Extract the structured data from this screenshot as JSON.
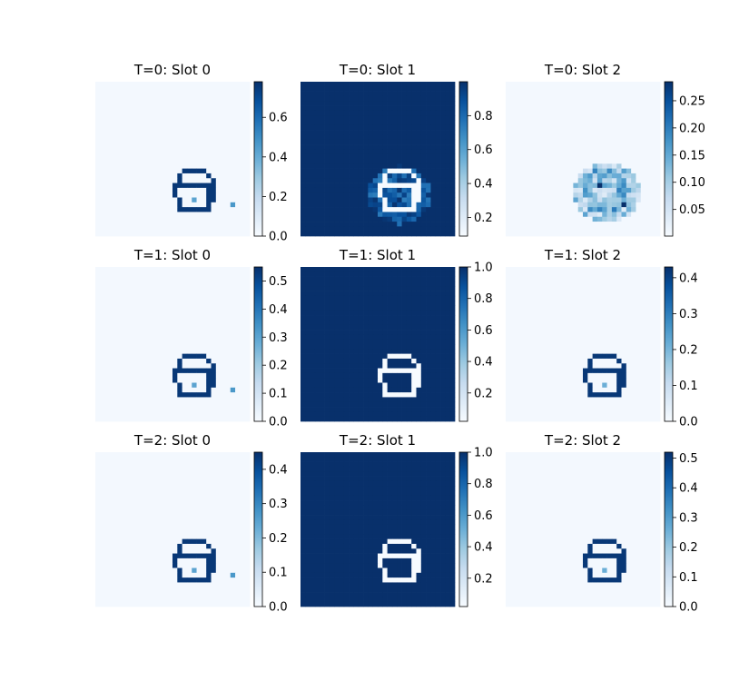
{
  "chart_data": [
    {
      "type": "heatmap",
      "title": "T=0: Slot 0",
      "colormap": "Blues",
      "colorbar": {
        "range": [
          0.0,
          0.78
        ],
        "ticks": [
          "0.0",
          "0.2",
          "0.4",
          "0.6"
        ],
        "tick_values": [
          0.0,
          0.2,
          0.4,
          0.6
        ]
      }
    },
    {
      "type": "heatmap",
      "title": "T=0: Slot 1",
      "colormap": "Blues",
      "colorbar": {
        "range": [
          0.09,
          1.0
        ],
        "ticks": [
          "0.2",
          "0.4",
          "0.6",
          "0.8"
        ],
        "tick_values": [
          0.2,
          0.4,
          0.6,
          0.8
        ]
      }
    },
    {
      "type": "heatmap",
      "title": "T=0: Slot 2",
      "colormap": "Blues",
      "colorbar": {
        "range": [
          0.001,
          0.285
        ],
        "ticks": [
          "0.05",
          "0.10",
          "0.15",
          "0.20",
          "0.25"
        ],
        "tick_values": [
          0.05,
          0.1,
          0.15,
          0.2,
          0.25
        ]
      }
    },
    {
      "type": "heatmap",
      "title": "T=1: Slot 0",
      "colormap": "Blues",
      "colorbar": {
        "range": [
          0.0,
          0.55
        ],
        "ticks": [
          "0.0",
          "0.1",
          "0.2",
          "0.3",
          "0.4",
          "0.5"
        ],
        "tick_values": [
          0.0,
          0.1,
          0.2,
          0.3,
          0.4,
          0.5
        ]
      }
    },
    {
      "type": "heatmap",
      "title": "T=1: Slot 1",
      "colormap": "Blues",
      "colorbar": {
        "range": [
          0.02,
          1.0
        ],
        "ticks": [
          "0.2",
          "0.4",
          "0.6",
          "0.8",
          "1.0"
        ],
        "tick_values": [
          0.2,
          0.4,
          0.6,
          0.8,
          1.0
        ]
      }
    },
    {
      "type": "heatmap",
      "title": "T=1: Slot 2",
      "colormap": "Blues",
      "colorbar": {
        "range": [
          0.0,
          0.43
        ],
        "ticks": [
          "0.0",
          "0.1",
          "0.2",
          "0.3",
          "0.4"
        ],
        "tick_values": [
          0.0,
          0.1,
          0.2,
          0.3,
          0.4
        ]
      }
    },
    {
      "type": "heatmap",
      "title": "T=2: Slot 0",
      "colormap": "Blues",
      "colorbar": {
        "range": [
          0.0,
          0.45
        ],
        "ticks": [
          "0.0",
          "0.1",
          "0.2",
          "0.3",
          "0.4"
        ],
        "tick_values": [
          0.0,
          0.1,
          0.2,
          0.3,
          0.4
        ]
      }
    },
    {
      "type": "heatmap",
      "title": "T=2: Slot 1",
      "colormap": "Blues",
      "colorbar": {
        "range": [
          0.02,
          1.0
        ],
        "ticks": [
          "0.2",
          "0.4",
          "0.6",
          "0.8",
          "1.0"
        ],
        "tick_values": [
          0.2,
          0.4,
          0.6,
          0.8,
          1.0
        ]
      }
    },
    {
      "type": "heatmap",
      "title": "T=2: Slot 2",
      "colormap": "Blues",
      "colorbar": {
        "range": [
          0.0,
          0.52
        ],
        "ticks": [
          "0.0",
          "0.1",
          "0.2",
          "0.3",
          "0.4",
          "0.5"
        ],
        "tick_values": [
          0.0,
          0.1,
          0.2,
          0.3,
          0.4,
          0.5
        ]
      }
    }
  ],
  "colors": {
    "blues_min": "#f7fbff",
    "blues_mid": "#6baed6",
    "blues_max": "#08306b",
    "background": "#ffffff",
    "text": "#000000"
  }
}
